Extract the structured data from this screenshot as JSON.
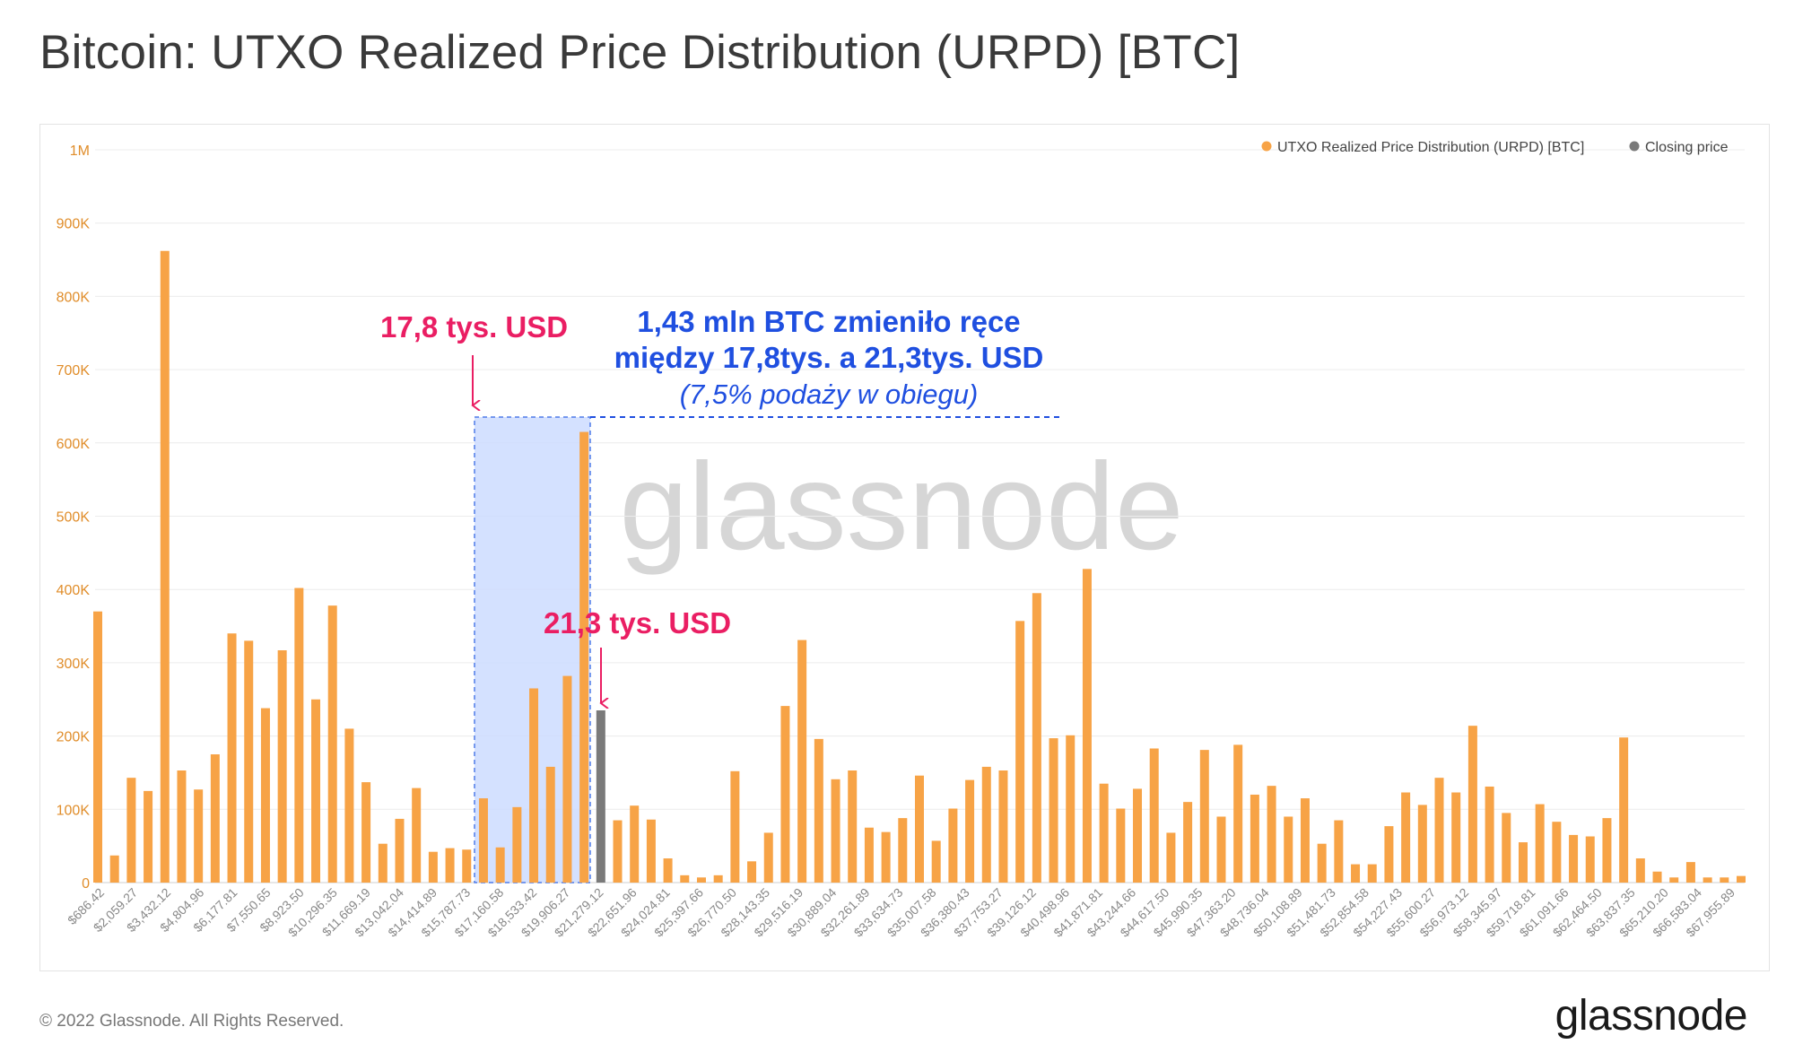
{
  "title": "Bitcoin: UTXO Realized Price Distribution (URPD) [BTC]",
  "footer": {
    "copyright": "© 2022 Glassnode. All Rights Reserved.",
    "brand": "glassnode"
  },
  "watermark": "glassnode",
  "colors": {
    "series_orange": "#f7a346",
    "closing_gray": "#7a7a7a",
    "highlight_blue": "#ccdcff",
    "annotation_red": "#ea1e63",
    "annotation_blue": "#1f4fe0",
    "axis_text": "#e08d2a"
  },
  "chart_data": {
    "type": "bar",
    "title": "UTXO Realized Price Distribution (URPD) [BTC]",
    "xlabel": "",
    "ylabel": "",
    "ylim": [
      0,
      1000000
    ],
    "yticks": [
      0,
      100000,
      200000,
      300000,
      400000,
      500000,
      600000,
      700000,
      800000,
      900000,
      1000000
    ],
    "ytick_labels": [
      "0",
      "100K",
      "200K",
      "300K",
      "400K",
      "500K",
      "600K",
      "700K",
      "800K",
      "900K",
      "1M"
    ],
    "grid": true,
    "legend_position": "top-right",
    "legend": [
      {
        "label": "UTXO Realized Price Distribution (URPD) [BTC]",
        "color": "#f7a346"
      },
      {
        "label": "Closing price",
        "color": "#7a7a7a"
      }
    ],
    "xtick_labels": [
      "$686.42",
      "$2,059.27",
      "$3,432.12",
      "$4,804.96",
      "$6,177.81",
      "$7,550.65",
      "$8,923.50",
      "$10,296.35",
      "$11,669.19",
      "$13,042.04",
      "$14,414.89",
      "$15,787.73",
      "$17,160.58",
      "$18,533.42",
      "$19,906.27",
      "$21,279.12",
      "$22,651.96",
      "$24,024.81",
      "$25,397.66",
      "$26,770.50",
      "$28,143.35",
      "$29,516.19",
      "$30,889.04",
      "$32,261.89",
      "$33,634.73",
      "$35,007.58",
      "$36,380.43",
      "$37,753.27",
      "$39,126.12",
      "$40,498.96",
      "$41,871.81",
      "$43,244.66",
      "$44,617.50",
      "$45,990.35",
      "$47,363.20",
      "$48,736.04",
      "$50,108.89",
      "$51,481.73",
      "$52,854.58",
      "$54,227.43",
      "$55,600.27",
      "$56,973.12",
      "$58,345.97",
      "$59,718.81",
      "$61,091.66",
      "$62,464.50",
      "$63,837.35",
      "$65,210.20",
      "$66,583.04",
      "$67,955.89"
    ],
    "values": [
      370000,
      37000,
      143000,
      125000,
      862000,
      153000,
      127000,
      175000,
      340000,
      330000,
      238000,
      317000,
      402000,
      250000,
      378000,
      210000,
      137000,
      53000,
      87000,
      129000,
      42000,
      47000,
      45000,
      115000,
      48000,
      103000,
      265000,
      158000,
      282000,
      615000,
      235000,
      85000,
      105000,
      86000,
      33000,
      10000,
      7000,
      10000,
      152000,
      29000,
      68000,
      241000,
      331000,
      196000,
      141000,
      153000,
      75000,
      69000,
      88000,
      146000,
      57000,
      101000,
      140000,
      158000,
      153000,
      357000,
      395000,
      197000,
      201000,
      428000,
      135000,
      101000,
      128000,
      183000,
      68000,
      110000,
      181000,
      90000,
      188000,
      120000,
      132000,
      90000,
      115000,
      53000,
      85000,
      25000,
      25000,
      77000,
      123000,
      106000,
      143000,
      123000,
      214000,
      131000,
      95000,
      55000,
      107000,
      83000,
      65000,
      63000,
      88000,
      198000,
      33000,
      15000,
      7000,
      28000,
      7000,
      7000,
      9000
    ],
    "closing_price_bar_index": 30,
    "highlight_range": {
      "from": "$17,160.58",
      "to": "$21,279.12"
    },
    "annotations": {
      "left_label": "17,8 tys. USD",
      "right_label": "21,3 tys. USD",
      "box_line1": "1,43 mln BTC zmieniło ręce",
      "box_line2": "między 17,8tys. a 21,3tys. USD",
      "box_line3": "(7,5% podaży w obiegu)"
    }
  }
}
